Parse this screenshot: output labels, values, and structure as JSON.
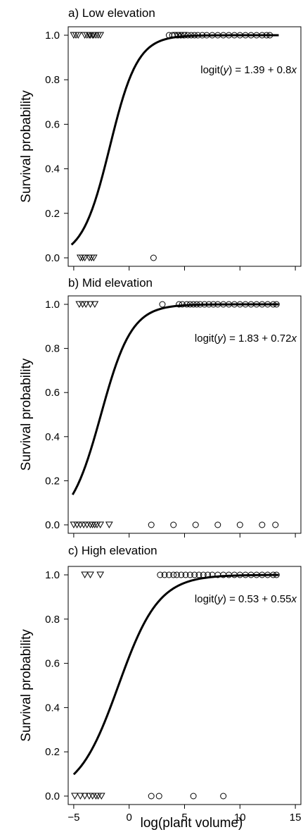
{
  "chart_data": [
    {
      "type": "scatter",
      "title": "a) Low elevation",
      "xlabel": "",
      "ylabel": "Survival probability",
      "equation": {
        "lhs": "logit(",
        "var_y": "y",
        "mid": ") = 1.39 + 0.8",
        "var_x": "x"
      },
      "xlim": [
        -5.5,
        15.5
      ],
      "ylim": [
        -0.05,
        1.05
      ],
      "yticks": [
        "0.0",
        "0.2",
        "0.4",
        "0.6",
        "0.8",
        "1.0"
      ],
      "xticks": [
        -5,
        0,
        5,
        10,
        15
      ],
      "show_xtick_labels": false,
      "curve": {
        "intercept": 1.39,
        "slope": 0.8,
        "x_range": [
          -5.2,
          13.5
        ]
      },
      "series": [
        {
          "marker": "triangle-down",
          "x": [
            -5.0,
            -4.8,
            -4.6,
            -4.0,
            -3.8,
            -3.6,
            -3.5,
            -3.3,
            -3.2,
            -3.0,
            -2.8,
            -2.6,
            -4.2,
            -4.4,
            -3.4,
            -4.0,
            -3.6,
            -3.2
          ],
          "y": [
            1,
            1,
            1,
            1,
            1,
            1,
            1,
            1,
            1,
            1,
            1,
            1,
            0,
            0,
            0,
            0,
            0,
            0
          ]
        },
        {
          "marker": "circle",
          "x": [
            2.2,
            3.6,
            3.9,
            4.1,
            4.4,
            4.7,
            5.0,
            5.3,
            5.6,
            5.9,
            6.2,
            6.6,
            7.0,
            7.5,
            8.0,
            8.5,
            9.0,
            9.5,
            10.0,
            10.5,
            11.0,
            11.5,
            12.0,
            12.4,
            12.7
          ],
          "y": [
            0,
            1,
            1,
            1,
            1,
            1,
            1,
            1,
            1,
            1,
            1,
            1,
            1,
            1,
            1,
            1,
            1,
            1,
            1,
            1,
            1,
            1,
            1,
            1,
            1
          ]
        },
        {
          "marker": "triangle-down",
          "x": [
            4.3,
            4.6,
            4.9
          ],
          "y": [
            1,
            1,
            1
          ]
        }
      ]
    },
    {
      "type": "scatter",
      "title": "b) Mid elevation",
      "xlabel": "",
      "ylabel": "Survival probability",
      "equation": {
        "lhs": "logit(",
        "var_y": "y",
        "mid": ") = 1.83 + 0.72",
        "var_x": "x"
      },
      "xlim": [
        -5.5,
        15.5
      ],
      "ylim": [
        -0.05,
        1.05
      ],
      "yticks": [
        "0.0",
        "0.2",
        "0.4",
        "0.6",
        "0.8",
        "1.0"
      ],
      "xticks": [
        -5,
        0,
        5,
        10,
        15
      ],
      "show_xtick_labels": false,
      "curve": {
        "intercept": 1.83,
        "slope": 0.72,
        "x_range": [
          -5.1,
          13.5
        ]
      },
      "series": [
        {
          "marker": "triangle-down",
          "x": [
            -4.5,
            -4.2,
            -3.9,
            -3.5,
            -3.1,
            -5.0,
            -4.7,
            -4.4,
            -4.1,
            -3.8,
            -3.5,
            -3.3,
            -3.1,
            -2.9,
            -2.6,
            -1.8
          ],
          "y": [
            1,
            1,
            1,
            1,
            1,
            0,
            0,
            0,
            0,
            0,
            0,
            0,
            0,
            0,
            0,
            0
          ]
        },
        {
          "marker": "circle",
          "x": [
            3.0,
            4.5,
            4.8,
            5.2,
            5.5,
            5.8,
            6.1,
            6.4,
            6.8,
            7.2,
            7.6,
            8.0,
            8.5,
            9.0,
            9.5,
            10.0,
            10.5,
            11.0,
            11.5,
            12.0,
            12.5,
            13.0,
            13.3
          ],
          "y": [
            1,
            1,
            1,
            1,
            1,
            1,
            1,
            1,
            1,
            1,
            1,
            1,
            1,
            1,
            1,
            1,
            1,
            1,
            1,
            1,
            1,
            1,
            1
          ]
        },
        {
          "marker": "circle",
          "x": [
            2.0,
            4.0,
            6.0,
            8.0,
            10.0,
            12.0,
            13.2
          ],
          "y": [
            0,
            0,
            0,
            0,
            0,
            0,
            0
          ]
        }
      ]
    },
    {
      "type": "scatter",
      "title": "c) High elevation",
      "xlabel": "log(plant volume)",
      "ylabel": "Survival probability",
      "equation": {
        "lhs": "logit(",
        "var_y": "y",
        "mid": ") = 0.53 + 0.55",
        "var_x": "x"
      },
      "xlim": [
        -5.5,
        15.5
      ],
      "ylim": [
        -0.05,
        1.05
      ],
      "yticks": [
        "0.0",
        "0.2",
        "0.4",
        "0.6",
        "0.8",
        "1.0"
      ],
      "xticks": [
        -5,
        0,
        5,
        10,
        15
      ],
      "xtick_labels": [
        "−5",
        "0",
        "5",
        "10",
        "15"
      ],
      "show_xtick_labels": true,
      "curve": {
        "intercept": 0.53,
        "slope": 0.55,
        "x_range": [
          -5.0,
          13.5
        ]
      },
      "series": [
        {
          "marker": "triangle-down",
          "x": [
            -4.0,
            -3.5,
            -2.6,
            -4.9,
            -4.4,
            -4.0,
            -3.6,
            -3.3,
            -3.0,
            -2.8,
            -2.5
          ],
          "y": [
            1,
            1,
            1,
            0,
            0,
            0,
            0,
            0,
            0,
            0,
            0
          ]
        },
        {
          "marker": "circle",
          "x": [
            2.8,
            3.2,
            3.6,
            4.0,
            4.3,
            4.7,
            5.1,
            5.5,
            5.9,
            6.3,
            6.7,
            7.1,
            7.5,
            8.0,
            8.5,
            9.0,
            9.5,
            10.0,
            10.5,
            11.0,
            11.5,
            12.0,
            12.5,
            13.0,
            13.3
          ],
          "y": [
            1,
            1,
            1,
            1,
            1,
            1,
            1,
            1,
            1,
            1,
            1,
            1,
            1,
            1,
            1,
            1,
            1,
            1,
            1,
            1,
            1,
            1,
            1,
            1,
            1
          ]
        },
        {
          "marker": "circle",
          "x": [
            2.0,
            2.7,
            5.8,
            8.5
          ],
          "y": [
            0,
            0,
            0,
            0
          ]
        }
      ]
    }
  ]
}
